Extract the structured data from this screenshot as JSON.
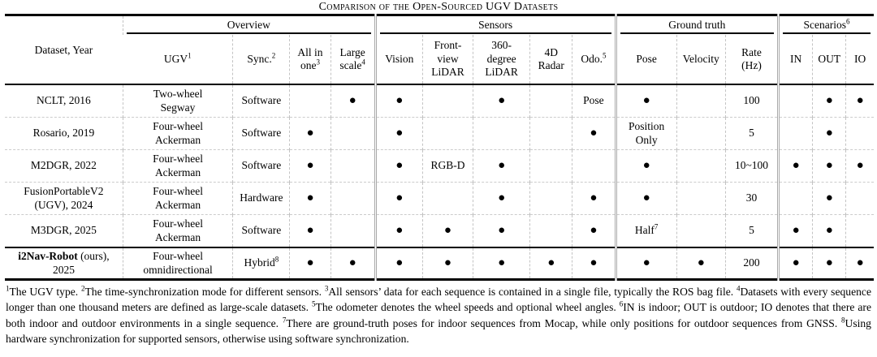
{
  "title": "Comparison of the Open-Sourced UGV Datasets",
  "table": {
    "corner_header": "Dataset, Year",
    "groups": [
      {
        "label": "Overview",
        "span": 4
      },
      {
        "label": "Sensors",
        "span": 5
      },
      {
        "label": "Ground truth",
        "span": 3
      },
      {
        "label": "Scenarios^6",
        "span": 3
      }
    ],
    "columns": [
      "UGV^1",
      "Sync.^2",
      "All in\none^3",
      "Large\nscale^4",
      "Vision",
      "Front-\nview\nLiDAR",
      "360-\ndegree\nLiDAR",
      "4D\nRadar",
      "Odo.^5",
      "Pose",
      "Velocity",
      "Rate\n(Hz)",
      "IN",
      "OUT",
      "IO"
    ],
    "dot": "●",
    "rows": [
      {
        "dataset": "NCLT, 2016",
        "highlight": false,
        "cells": [
          "Two-wheel\nSegway",
          "Software",
          "",
          "●",
          "●",
          "",
          "●",
          "",
          "Pose",
          "●",
          "",
          "100",
          "",
          "●",
          "●"
        ]
      },
      {
        "dataset": "Rosario, 2019",
        "highlight": false,
        "cells": [
          "Four-wheel\nAckerman",
          "Software",
          "●",
          "",
          "●",
          "",
          "",
          "",
          "●",
          "Position\nOnly",
          "",
          "5",
          "",
          "●",
          ""
        ]
      },
      {
        "dataset": "M2DGR, 2022",
        "highlight": false,
        "cells": [
          "Four-wheel\nAckerman",
          "Software",
          "●",
          "",
          "●",
          "RGB-D",
          "●",
          "",
          "",
          "●",
          "",
          "10~100",
          "●",
          "●",
          "●"
        ]
      },
      {
        "dataset": "FusionPortableV2\n(UGV), 2024",
        "highlight": false,
        "cells": [
          "Four-wheel\nAckerman",
          "Hardware",
          "●",
          "",
          "●",
          "",
          "●",
          "",
          "●",
          "●",
          "",
          "30",
          "",
          "●",
          ""
        ]
      },
      {
        "dataset": "M3DGR, 2025",
        "highlight": false,
        "cells": [
          "Four-wheel\nAckerman",
          "Software",
          "●",
          "",
          "●",
          "●",
          "●",
          "",
          "●",
          "Half^7",
          "",
          "5",
          "●",
          "●",
          ""
        ]
      },
      {
        "dataset": "**i2Nav-Robot** (ours),\n2025",
        "highlight": true,
        "cells": [
          "Four-wheel\nomnidirectional",
          "Hybrid^8",
          "●",
          "●",
          "●",
          "●",
          "●",
          "●",
          "●",
          "●",
          "●",
          "200",
          "●",
          "●",
          "●"
        ]
      }
    ]
  },
  "footnotes": "^1The UGV type. ^2The time-synchronization mode for different sensors. ^3All sensors’ data for each sequence is contained in a single file, typically the ROS bag file. ^4Datasets with every sequence longer than one thousand meters are defined as large-scale datasets. ^5The odometer denotes the wheel speeds and optional wheel angles. ^6IN is indoor; OUT is outdoor; IO denotes that there are both indoor and outdoor environments in a single sequence. ^7There are ground-truth poses for indoor sequences from Mocap, while only positions for outdoor sequences from GNSS. ^8Using hardware synchronization for supported sensors, otherwise using software synchronization."
}
